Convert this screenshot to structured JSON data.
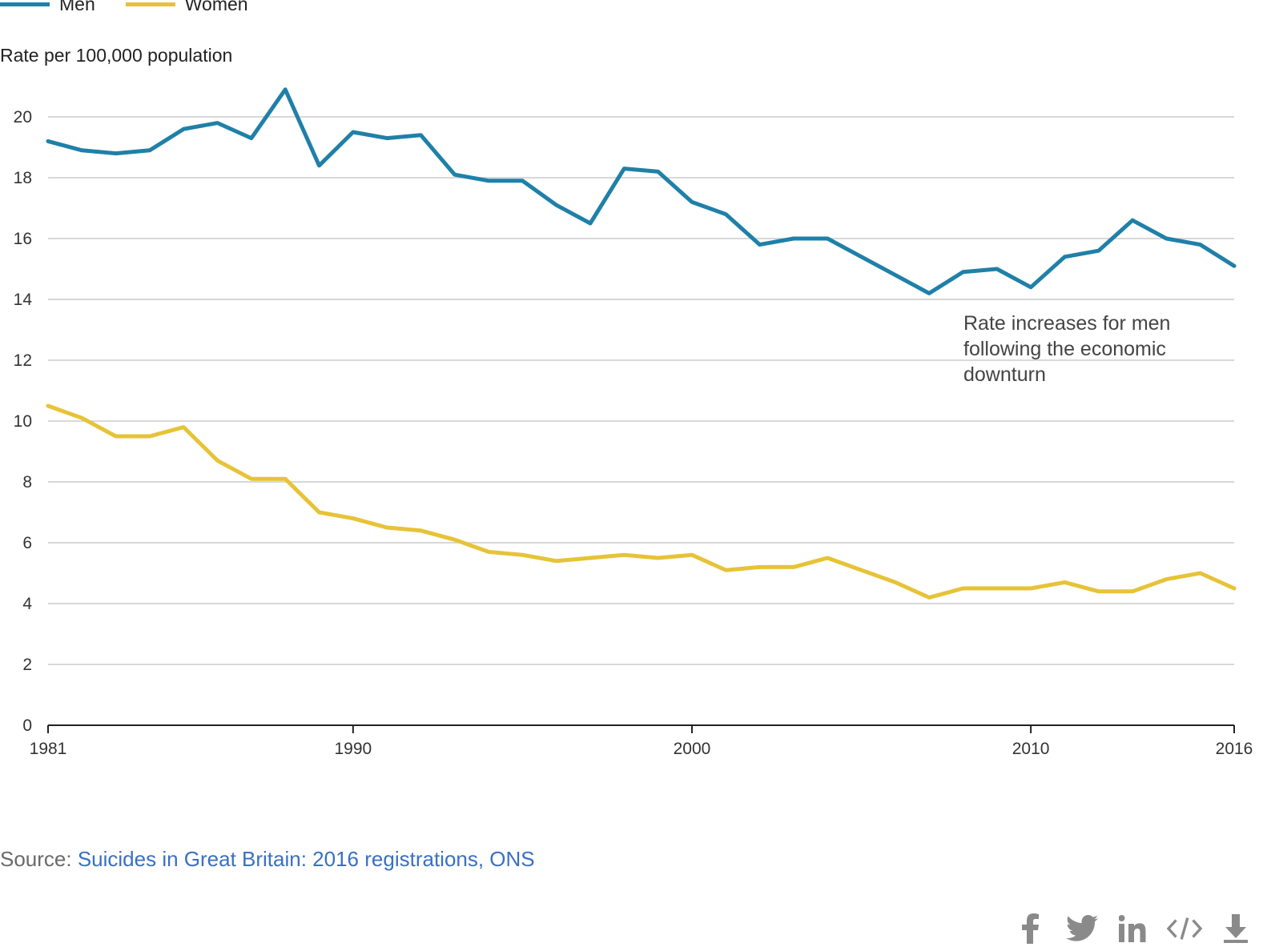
{
  "legend": {
    "men_label": "Men",
    "women_label": "Women"
  },
  "colors": {
    "men": "#1f80a8",
    "women": "#e6c337",
    "grid": "#cccccc",
    "axis": "#222222"
  },
  "chart_data": {
    "type": "line",
    "ylabel": "Rate per 100,000 population",
    "xlabel": "",
    "title": "",
    "ylim": [
      0,
      21
    ],
    "xlim": [
      1981,
      2016
    ],
    "yticks": [
      0,
      2,
      4,
      6,
      8,
      10,
      12,
      14,
      16,
      18,
      20
    ],
    "xticks": [
      1981,
      1990,
      2000,
      2010,
      2016
    ],
    "grid": true,
    "legend_position": "top-left",
    "x": [
      1981,
      1982,
      1983,
      1984,
      1985,
      1986,
      1987,
      1988,
      1989,
      1990,
      1991,
      1992,
      1993,
      1994,
      1995,
      1996,
      1997,
      1998,
      1999,
      2000,
      2001,
      2002,
      2003,
      2004,
      2005,
      2006,
      2007,
      2008,
      2009,
      2010,
      2011,
      2012,
      2013,
      2014,
      2015,
      2016
    ],
    "series": [
      {
        "name": "Men",
        "values": [
          19.2,
          18.9,
          18.8,
          18.9,
          19.6,
          19.8,
          19.3,
          20.9,
          18.4,
          19.5,
          19.3,
          19.4,
          18.1,
          17.9,
          17.9,
          17.1,
          16.5,
          18.3,
          18.2,
          17.2,
          16.8,
          15.8,
          16.0,
          16.0,
          15.4,
          14.8,
          14.2,
          14.9,
          15.0,
          14.4,
          15.4,
          15.6,
          16.6,
          16.0,
          15.8,
          15.1
        ]
      },
      {
        "name": "Women",
        "values": [
          10.5,
          10.1,
          9.5,
          9.5,
          9.8,
          8.7,
          8.1,
          8.1,
          7.0,
          6.8,
          6.5,
          6.4,
          6.1,
          5.7,
          5.6,
          5.4,
          5.5,
          5.6,
          5.5,
          5.6,
          5.1,
          5.2,
          5.2,
          5.5,
          5.1,
          4.7,
          4.2,
          4.5,
          4.5,
          4.5,
          4.7,
          4.4,
          4.4,
          4.8,
          5.0,
          4.5
        ]
      }
    ],
    "annotations": [
      {
        "text": "Rate increases for men following the economic downturn"
      }
    ]
  },
  "source": {
    "prefix": "Source: ",
    "link_text": "Suicides in Great Britain: 2016 registrations, ONS"
  },
  "share": {
    "icons": [
      "facebook-icon",
      "twitter-icon",
      "linkedin-icon",
      "embed-code-icon",
      "download-icon"
    ]
  }
}
